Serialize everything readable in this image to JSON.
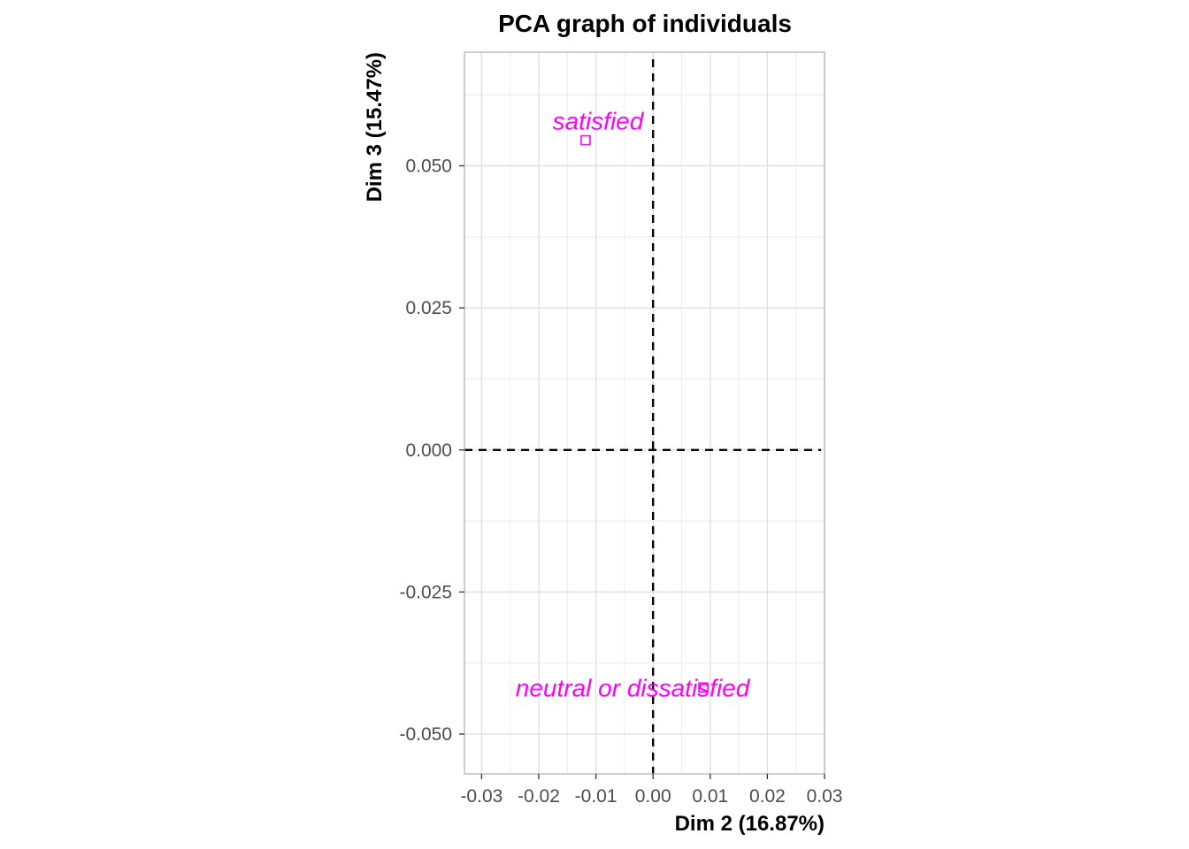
{
  "chart_data": {
    "type": "scatter",
    "title": "PCA graph of individuals",
    "xlabel": "Dim 2 (16.87%)",
    "ylabel": "Dim 3 (15.47%)",
    "xlim": [
      -0.033,
      0.03
    ],
    "ylim": [
      -0.057,
      0.07
    ],
    "x_ticks": [
      -0.03,
      -0.02,
      -0.01,
      0.0,
      0.01,
      0.02,
      0.03
    ],
    "x_tick_labels": [
      "-0.03",
      "-0.02",
      "-0.01",
      "0.00",
      "0.01",
      "0.02",
      "0.03"
    ],
    "y_ticks": [
      -0.05,
      -0.025,
      0.0,
      0.025,
      0.05
    ],
    "y_tick_labels": [
      "-0.050",
      "-0.025",
      "0.000",
      "0.025",
      "0.050"
    ],
    "grid": true,
    "reference_lines": {
      "x": 0,
      "y": 0,
      "style": "dashed"
    },
    "point_color": "#ff00ff",
    "points": [
      {
        "label": "satisfied",
        "x": -0.0118,
        "y": 0.0545
      },
      {
        "label": "neutral or dissatisfied",
        "x": 0.0088,
        "y": -0.0418
      }
    ]
  }
}
